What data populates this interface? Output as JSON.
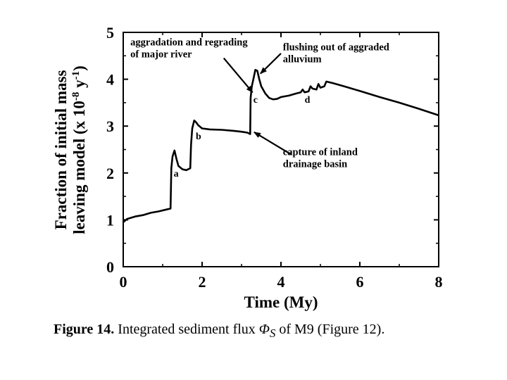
{
  "chart_data": {
    "type": "line",
    "xlabel": "Time (My)",
    "ylabel_line1": "Fraction of initial mass",
    "ylabel_line2": "leaving model (x 10",
    "ylabel_exp": "-8",
    "ylabel_unit": " y",
    "ylabel_unit_exp": "-1",
    "ylabel_close": ")",
    "xlim": [
      0,
      8
    ],
    "ylim": [
      0,
      5
    ],
    "x_ticks": [
      0,
      2,
      4,
      6,
      8
    ],
    "y_ticks": [
      0,
      1,
      2,
      3,
      4,
      5
    ],
    "grid": false,
    "series": [
      {
        "x": [
          0,
          0.1,
          0.3,
          0.5,
          0.7,
          0.9,
          1.1,
          1.2,
          1.22,
          1.25,
          1.3,
          1.35,
          1.4,
          1.5,
          1.6,
          1.7,
          1.72,
          1.75,
          1.8,
          1.85,
          1.9,
          2.0,
          2.2,
          2.5,
          2.8,
          3.0,
          3.15,
          3.22,
          3.23,
          3.26,
          3.3,
          3.35,
          3.4,
          3.45,
          3.5,
          3.6,
          3.7,
          3.8,
          3.9,
          4.0,
          4.2,
          4.4,
          4.5,
          4.55,
          4.6,
          4.7,
          4.75,
          4.8,
          4.9,
          4.95,
          5.0,
          5.1,
          5.15,
          5.3,
          5.6,
          6.0,
          6.5,
          7.0,
          7.5,
          8.0
        ],
        "y": [
          0.95,
          1.02,
          1.07,
          1.1,
          1.15,
          1.18,
          1.22,
          1.24,
          2.1,
          2.35,
          2.48,
          2.3,
          2.15,
          2.08,
          2.06,
          2.1,
          2.6,
          2.95,
          3.12,
          3.08,
          3.02,
          2.95,
          2.93,
          2.92,
          2.9,
          2.88,
          2.86,
          2.83,
          3.6,
          3.85,
          4.0,
          4.2,
          4.18,
          4.0,
          3.85,
          3.7,
          3.6,
          3.57,
          3.58,
          3.62,
          3.65,
          3.7,
          3.72,
          3.78,
          3.72,
          3.74,
          3.85,
          3.8,
          3.78,
          3.9,
          3.82,
          3.85,
          3.95,
          3.92,
          3.85,
          3.75,
          3.62,
          3.5,
          3.37,
          3.23
        ]
      }
    ],
    "point_labels": [
      {
        "text": "a",
        "x": 1.28,
        "y": 1.92
      },
      {
        "text": "b",
        "x": 1.84,
        "y": 2.72
      },
      {
        "text": "c",
        "x": 3.3,
        "y": 3.5
      },
      {
        "text": "d",
        "x": 4.6,
        "y": 3.5
      }
    ],
    "annotations": [
      {
        "lines": [
          "aggradation and regrading",
          "of major river"
        ],
        "text_x": 0.18,
        "text_y": 4.72,
        "arrow_from": [
          2.55,
          4.45
        ],
        "arrow_to": [
          3.28,
          3.72
        ]
      },
      {
        "lines": [
          "flushing out of aggraded",
          "alluvium"
        ],
        "text_x": 4.05,
        "text_y": 4.62,
        "arrow_from": [
          4.0,
          4.55
        ],
        "arrow_to": [
          3.48,
          4.12
        ]
      },
      {
        "lines": [
          "capture of inland",
          "drainage basin"
        ],
        "text_x": 4.05,
        "text_y": 2.38,
        "arrow_from": [
          4.25,
          2.4
        ],
        "arrow_to": [
          3.32,
          2.87
        ]
      }
    ]
  },
  "caption": {
    "label": "Figure 14.",
    "text_before": "Integrated sediment flux",
    "symbol": "Φ",
    "symbol_sub": "S",
    "text_after": "of M9 (Figure 12)."
  }
}
